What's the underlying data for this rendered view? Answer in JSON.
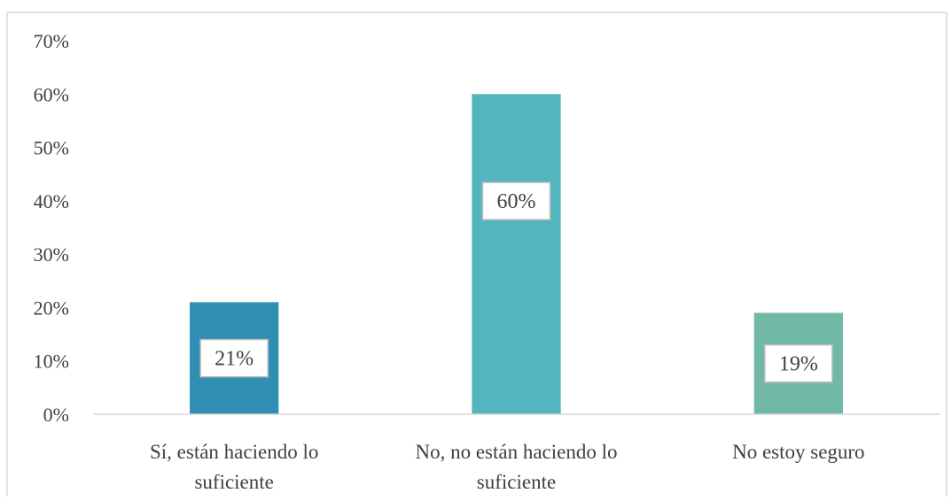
{
  "chart_data": {
    "type": "bar",
    "title": "",
    "xlabel": "",
    "ylabel": "",
    "categories": [
      [
        "Sí, están haciendo lo",
        "suficiente"
      ],
      [
        "No, no están haciendo lo",
        "suficiente"
      ],
      [
        "No estoy seguro"
      ]
    ],
    "values": [
      21,
      60,
      19
    ],
    "data_labels": [
      "21%",
      "60%",
      "19%"
    ],
    "colors": [
      "#318fb5",
      "#53b5bd",
      "#72b8a6"
    ],
    "ylim": [
      0,
      70
    ],
    "yticks": [
      0,
      10,
      20,
      30,
      40,
      50,
      60,
      70
    ],
    "ytick_labels": [
      "0%",
      "10%",
      "20%",
      "30%",
      "40%",
      "50%",
      "60%",
      "70%"
    ],
    "grid": false,
    "legend": "none"
  }
}
